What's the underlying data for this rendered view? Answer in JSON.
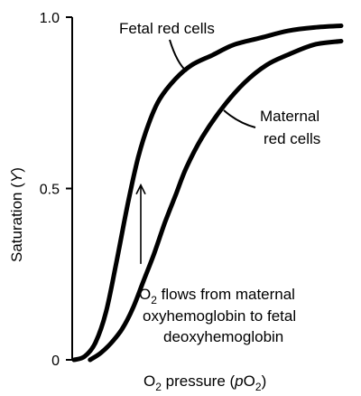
{
  "chart_data": {
    "type": "line",
    "title": "",
    "xlabel": {
      "main": "O",
      "sub": "2",
      "rest": " pressure (",
      "italic": "p",
      "var": "O",
      "varsub": "2",
      "close": ")"
    },
    "ylabel": {
      "main": "Saturation (",
      "italic": "Y",
      "close": ")"
    },
    "ylim": [
      0,
      1.0
    ],
    "x_ticks": [],
    "y_ticks": [
      {
        "value": 0,
        "label": "0"
      },
      {
        "value": 0.5,
        "label": "0.5"
      },
      {
        "value": 1.0,
        "label": "1.0"
      }
    ],
    "series": [
      {
        "name": "Fetal red cells",
        "label_lines": [
          "Fetal red cells"
        ],
        "x": [
          0.0,
          0.04,
          0.08,
          0.12,
          0.16,
          0.2,
          0.24,
          0.28,
          0.32,
          0.38,
          0.44,
          0.52,
          0.6,
          0.7,
          0.8,
          0.9,
          1.0
        ],
        "values": [
          0.0,
          0.01,
          0.05,
          0.14,
          0.29,
          0.45,
          0.59,
          0.69,
          0.76,
          0.82,
          0.86,
          0.89,
          0.92,
          0.94,
          0.96,
          0.97,
          0.975
        ]
      },
      {
        "name": "Maternal red cells",
        "label_lines": [
          "Maternal",
          "red cells"
        ],
        "x": [
          0.06,
          0.1,
          0.14,
          0.18,
          0.22,
          0.26,
          0.3,
          0.34,
          0.38,
          0.42,
          0.48,
          0.56,
          0.64,
          0.72,
          0.8,
          0.9,
          1.0
        ],
        "values": [
          0.0,
          0.02,
          0.05,
          0.09,
          0.15,
          0.23,
          0.31,
          0.4,
          0.48,
          0.56,
          0.65,
          0.74,
          0.81,
          0.86,
          0.89,
          0.92,
          0.93
        ]
      }
    ],
    "annotation": {
      "lines": [
        {
          "main": "O",
          "sub": "2",
          "rest": " flows from maternal"
        },
        {
          "main": "oxyhemoglobin to fetal"
        },
        {
          "main": "deoxyhemoglobin"
        }
      ],
      "arrow_x": 0.25,
      "arrow_from": 0.28,
      "arrow_to": 0.51
    }
  }
}
